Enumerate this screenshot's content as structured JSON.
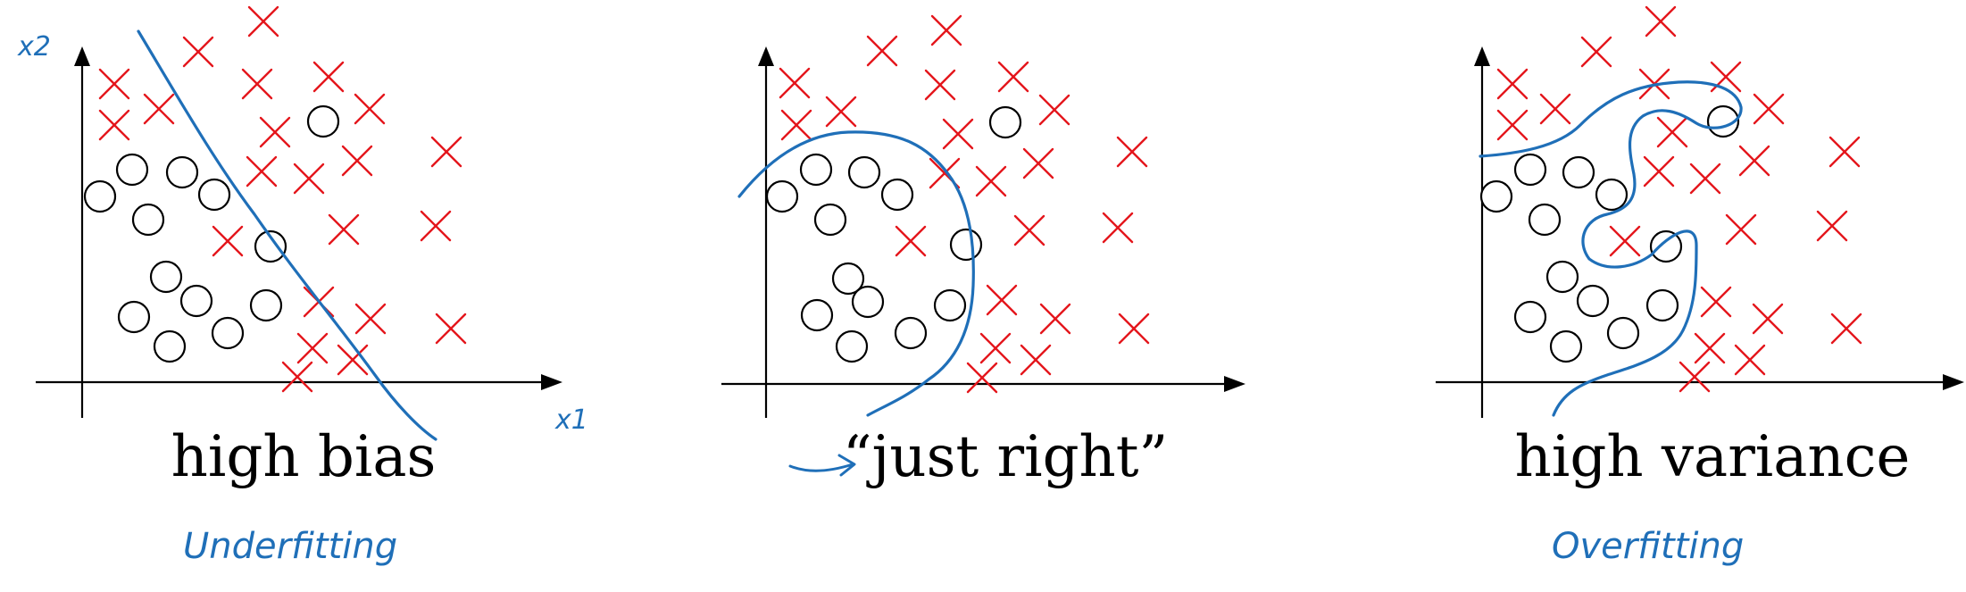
{
  "panels": [
    {
      "caption": "high bias",
      "annotation": "Underfitting",
      "x_axis_label": "x1",
      "y_axis_label": "x2",
      "pointer_arrow": false,
      "boundary_shape": "straight line"
    },
    {
      "caption": "“just right”",
      "annotation": "",
      "x_axis_label": "",
      "y_axis_label": "",
      "pointer_arrow": true,
      "boundary_shape": "smooth curve"
    },
    {
      "caption": "high variance",
      "annotation": "Overfitting",
      "x_axis_label": "",
      "y_axis_label": "",
      "pointer_arrow": false,
      "boundary_shape": "wiggly curve"
    }
  ],
  "colors": {
    "positive_class": "#e4161c",
    "negative_class": "#000000",
    "boundary": "#1f6fb8"
  },
  "marker_icons": [
    "cross-marker-icon",
    "circle-marker-icon"
  ]
}
